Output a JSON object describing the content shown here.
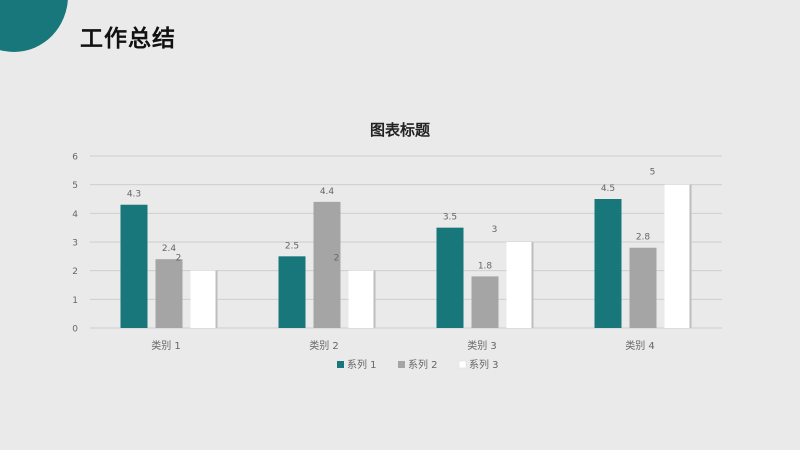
{
  "slide": {
    "title": "工作总结"
  },
  "colors": {
    "accent": "#17777a",
    "series1": "#17777a",
    "series2": "#a5a5a5",
    "series3": "#ffffff",
    "gridline": "#cfcfcf",
    "text": "#666666",
    "background": "#eaeaea"
  },
  "chart_data": {
    "type": "bar",
    "title": "图表标题",
    "categories": [
      "类别 1",
      "类别 2",
      "类别 3",
      "类别 4"
    ],
    "series": [
      {
        "name": "系列 1",
        "values": [
          4.3,
          2.5,
          3.5,
          4.5
        ]
      },
      {
        "name": "系列 2",
        "values": [
          2.4,
          4.4,
          1.8,
          2.8
        ]
      },
      {
        "name": "系列 3",
        "values": [
          2,
          2,
          3,
          5
        ]
      }
    ],
    "yticks": [
      "0",
      "1",
      "2",
      "3",
      "4",
      "5",
      "6"
    ],
    "ylim": [
      0,
      6
    ],
    "xlabel": "",
    "ylabel": "",
    "grid": true,
    "legend": "bottom",
    "data_labels": true
  }
}
